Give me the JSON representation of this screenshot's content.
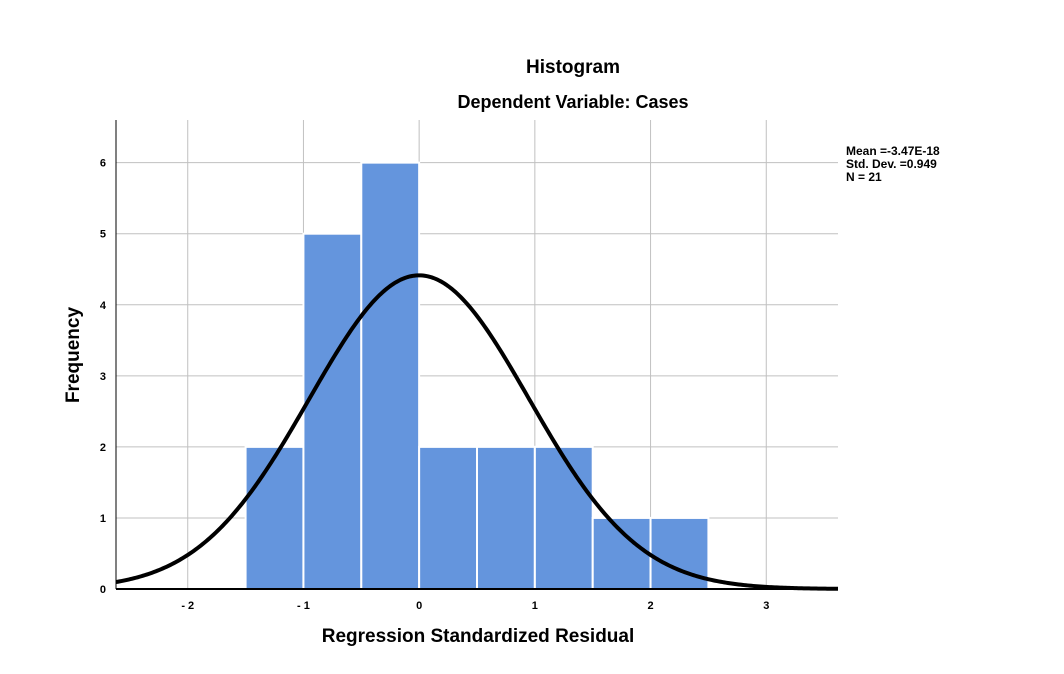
{
  "chart_data": {
    "type": "bar",
    "title": "Histogram",
    "subtitle": "Dependent Variable: Cases",
    "xlabel": "Regression Standardized Residual",
    "ylabel": "Frequency",
    "bins": [
      {
        "x0": -1.5,
        "x1": -1.0,
        "count": 2
      },
      {
        "x0": -1.0,
        "x1": -0.5,
        "count": 5
      },
      {
        "x0": -0.5,
        "x1": 0.0,
        "count": 6
      },
      {
        "x0": 0.0,
        "x1": 0.5,
        "count": 2
      },
      {
        "x0": 0.5,
        "x1": 1.0,
        "count": 2
      },
      {
        "x0": 1.0,
        "x1": 1.5,
        "count": 2
      },
      {
        "x0": 1.5,
        "x1": 2.0,
        "count": 1
      },
      {
        "x0": 2.0,
        "x1": 2.5,
        "count": 1
      }
    ],
    "xlim": [
      -2.62,
      3.62
    ],
    "ylim": [
      0,
      6.6
    ],
    "x_ticks": [
      -2,
      -1,
      0,
      1,
      2,
      3
    ],
    "x_tick_labels": [
      "- 2",
      "- 1",
      "0",
      "1",
      "2",
      "3"
    ],
    "y_ticks": [
      0,
      1,
      2,
      3,
      4,
      5,
      6
    ],
    "y_tick_labels": [
      "0",
      "1",
      "2",
      "3",
      "4",
      "5",
      "6"
    ],
    "grid": true,
    "normal_curve": {
      "mean": 0,
      "std": 0.949,
      "n": 21,
      "bin_width": 0.5
    },
    "stats_lines": [
      "Mean =-3.47E-18",
      "Std. Dev. =0.949",
      "N = 21"
    ],
    "colors": {
      "bar": "#6495dd",
      "bar_edge": "#ffffff",
      "curve": "#000000",
      "grid": "#c0c0c0",
      "axis": "#000000"
    }
  }
}
